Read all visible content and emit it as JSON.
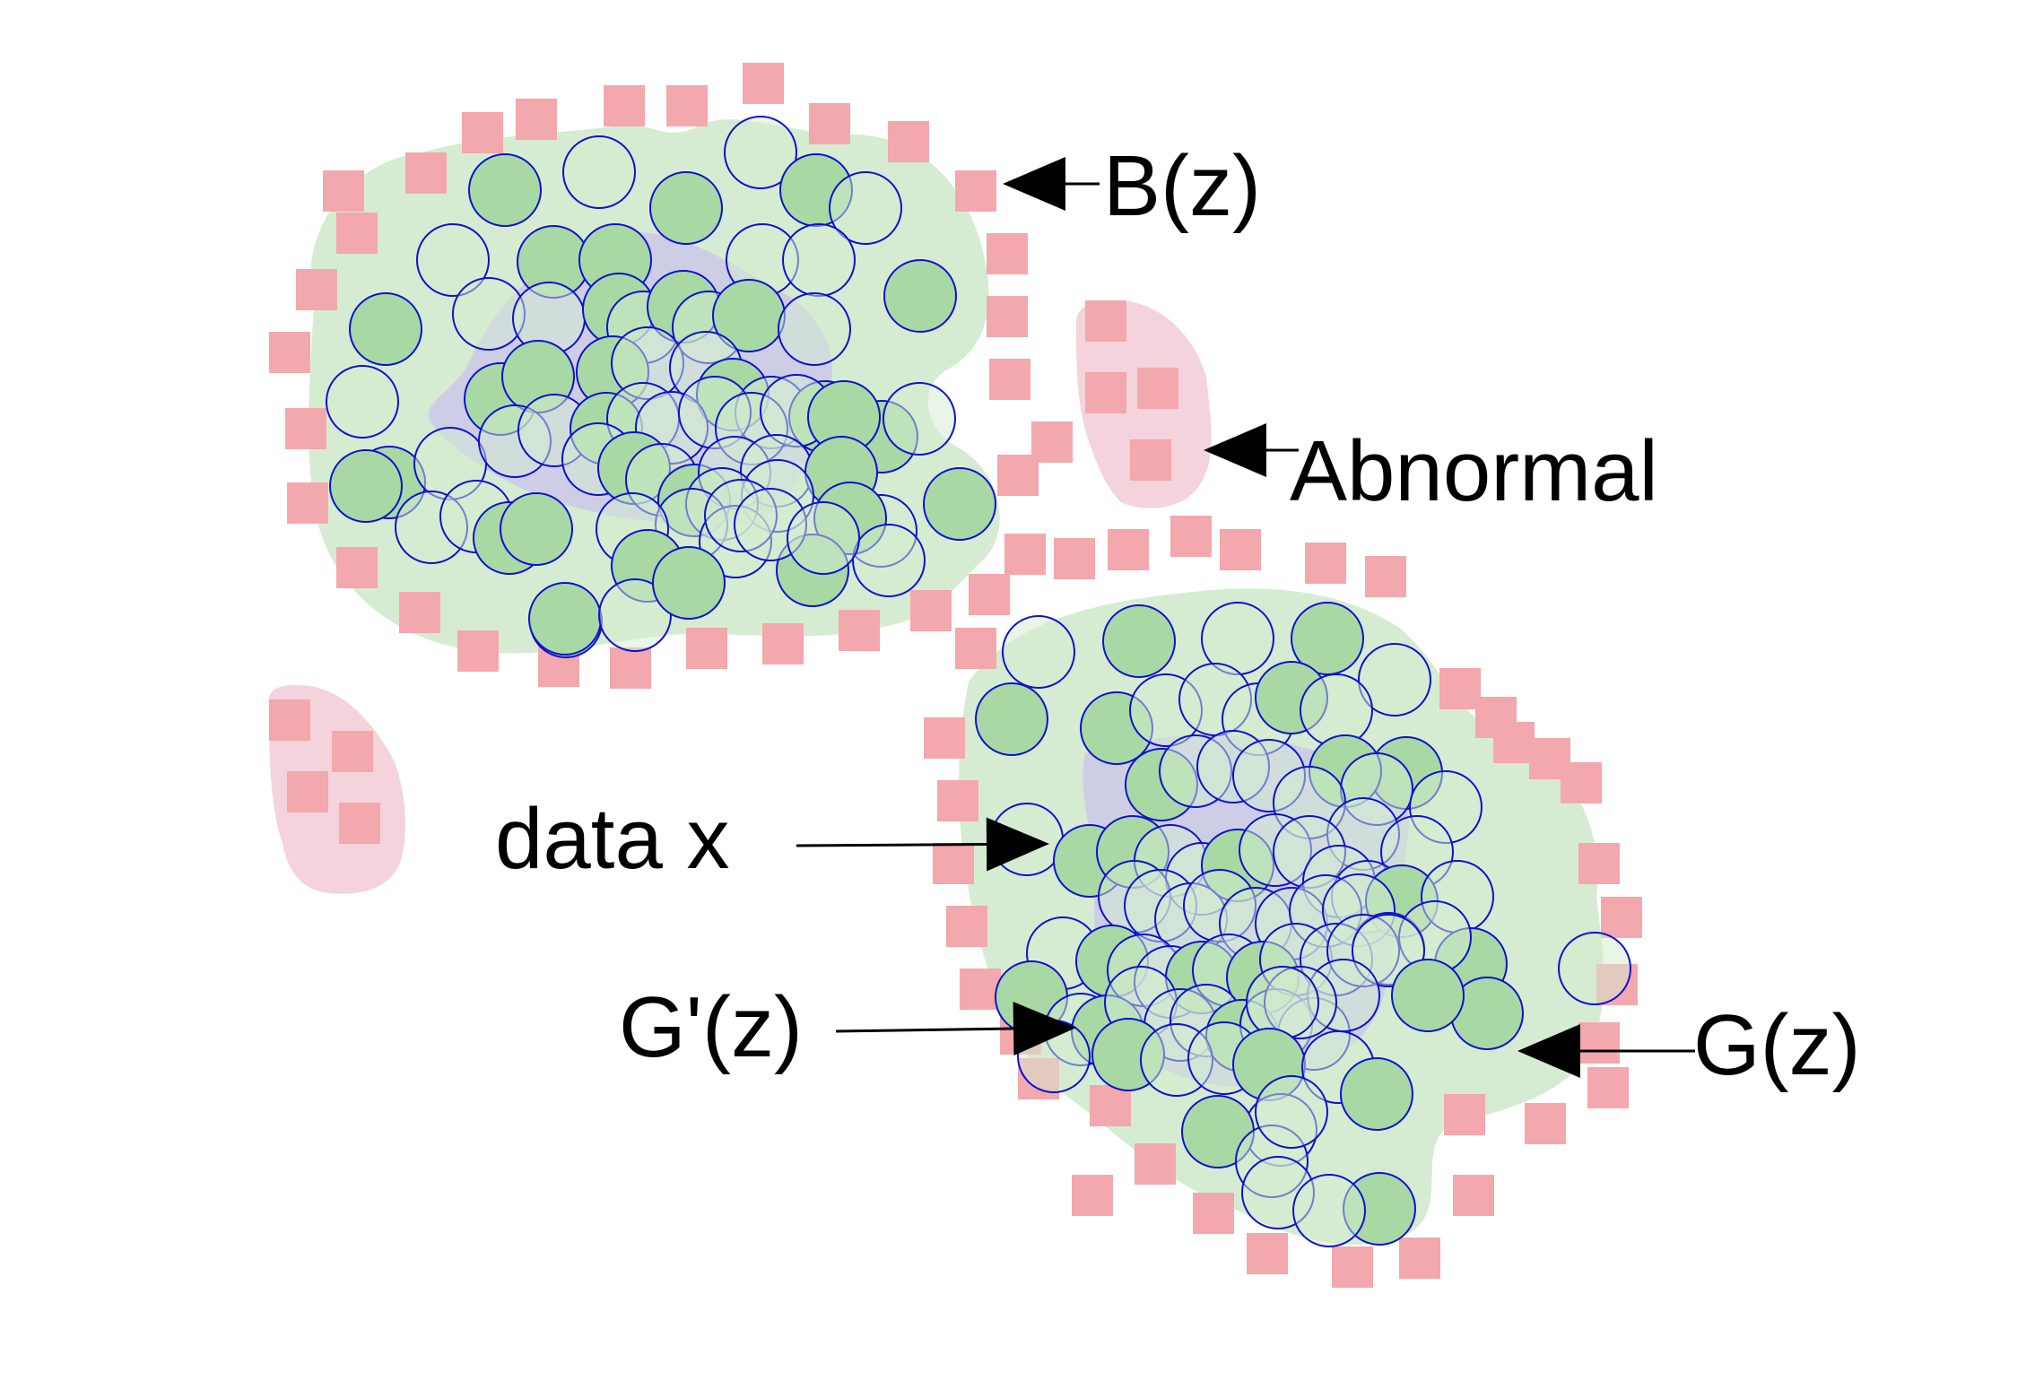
{
  "labels": {
    "b": "B(z)",
    "abnormal": "Abnormal",
    "data_x": "data x",
    "g_prime": "G'(z)",
    "g": "G(z)"
  },
  "colors": {
    "region_fill": "#d6ecd2",
    "core_fill": "#cbc9ea",
    "abnormal_fill": "#f4d3dc",
    "square_fill": "#f3a8ad",
    "circle_stroke": "#1010d0",
    "circle_fill_solid": "#a8d8a4",
    "circle_fill_light": "#d3ecd0",
    "arrow": "#000000",
    "text": "#000000"
  },
  "legend_items": [
    {
      "symbol": "pink-square",
      "meaning_label": "B(z)"
    },
    {
      "symbol": "blue-circle",
      "meaning_label": "data x"
    }
  ]
}
